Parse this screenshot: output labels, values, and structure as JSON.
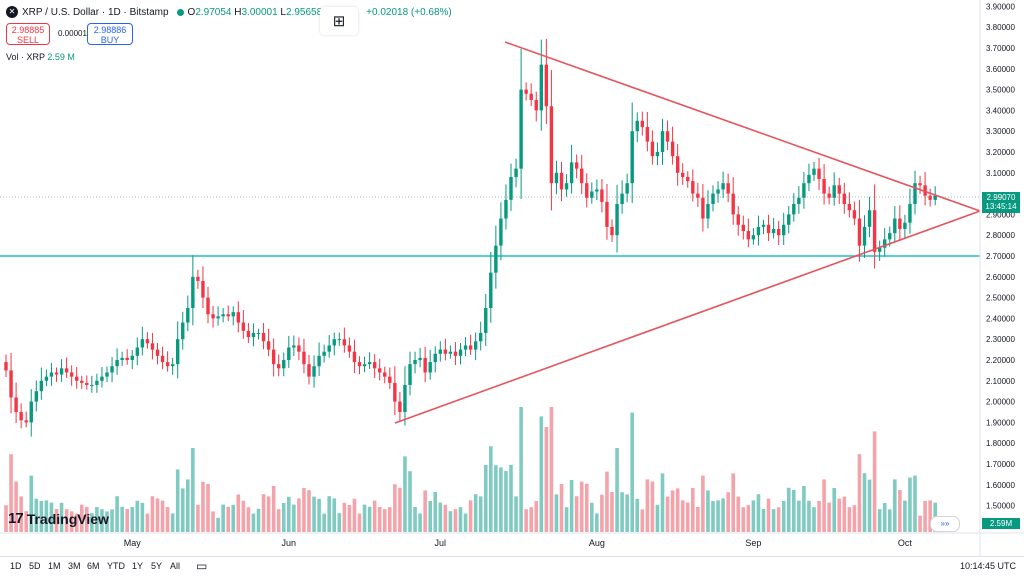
{
  "header": {
    "symbol": "XRP / U.S. Dollar · 1D · Bitstamp",
    "open_label": "O",
    "open": "2.97054",
    "high_label": "H",
    "high": "3.00001",
    "low_label": "L",
    "low": "2.95658",
    "change": "+0.02018 (+0.68%)"
  },
  "trade": {
    "sell_price": "2.98885",
    "sell_label": "SELL",
    "spread": "0.00001",
    "buy_price": "2.98886",
    "buy_label": "BUY"
  },
  "volume_label": {
    "name": "Vol · XRP",
    "value": "2.59 M"
  },
  "current_price": {
    "price": "2.99070",
    "countdown": "13:45:14"
  },
  "volume_tag": "2.59M",
  "logo_text": "TradingView",
  "timeframes": [
    "1D",
    "5D",
    "1M",
    "3M",
    "6M",
    "YTD",
    "1Y",
    "5Y",
    "All"
  ],
  "clock": "10:14:45 UTC",
  "colors": {
    "up": "#089981",
    "down": "#f23645",
    "up_volume": "#7fcbc1",
    "down_volume": "#f5a3aa",
    "trendline": "#e5545d",
    "support": "#1fc1c9"
  },
  "chart_data": {
    "type": "candlestick",
    "x_axis": {
      "labels": [
        "May",
        "Jun",
        "Jul",
        "Aug",
        "Sep",
        "Oct"
      ],
      "label_index": [
        25,
        56,
        86,
        117,
        148,
        178
      ]
    },
    "y_axis": {
      "ticks": [
        {
          "value": 3.9,
          "label": "3.90000"
        },
        {
          "value": 3.8,
          "label": "3.80000"
        },
        {
          "value": 3.7,
          "label": "3.70000"
        },
        {
          "value": 3.6,
          "label": "3.60000"
        },
        {
          "value": 3.5,
          "label": "3.50000"
        },
        {
          "value": 3.4,
          "label": "3.40000"
        },
        {
          "value": 3.3,
          "label": "3.30000"
        },
        {
          "value": 3.2,
          "label": "3.20000"
        },
        {
          "value": 3.1,
          "label": "3.10000"
        },
        {
          "value": 2.9,
          "label": "2.90000"
        },
        {
          "value": 2.8,
          "label": "2.80000"
        },
        {
          "value": 2.7,
          "label": "2.70000"
        },
        {
          "value": 2.6,
          "label": "2.60000"
        },
        {
          "value": 2.5,
          "label": "2.50000"
        },
        {
          "value": 2.4,
          "label": "2.40000"
        },
        {
          "value": 2.3,
          "label": "2.30000"
        },
        {
          "value": 2.2,
          "label": "2.20000"
        },
        {
          "value": 2.1,
          "label": "2.10000"
        },
        {
          "value": 2.0,
          "label": "2.00000"
        },
        {
          "value": 1.9,
          "label": "1.90000"
        },
        {
          "value": 1.8,
          "label": "1.80000"
        },
        {
          "value": 1.7,
          "label": "1.70000"
        },
        {
          "value": 1.6,
          "label": "1.60000"
        },
        {
          "value": 1.5,
          "label": "1.50000"
        }
      ]
    },
    "close": [
      2.15,
      2.02,
      1.95,
      1.91,
      1.9,
      2.0,
      2.05,
      2.1,
      2.12,
      2.14,
      2.13,
      2.16,
      2.14,
      2.12,
      2.1,
      2.09,
      2.08,
      2.08,
      2.1,
      2.12,
      2.14,
      2.17,
      2.2,
      2.21,
      2.2,
      2.22,
      2.26,
      2.3,
      2.28,
      2.25,
      2.22,
      2.19,
      2.17,
      2.18,
      2.3,
      2.38,
      2.45,
      2.6,
      2.58,
      2.5,
      2.42,
      2.4,
      2.41,
      2.42,
      2.41,
      2.43,
      2.38,
      2.34,
      2.31,
      2.33,
      2.33,
      2.29,
      2.25,
      2.18,
      2.16,
      2.2,
      2.26,
      2.27,
      2.24,
      2.18,
      2.12,
      2.17,
      2.22,
      2.24,
      2.27,
      2.3,
      2.3,
      2.27,
      2.24,
      2.19,
      2.17,
      2.18,
      2.19,
      2.16,
      2.14,
      2.12,
      2.09,
      2.0,
      1.95,
      2.08,
      2.18,
      2.2,
      2.21,
      2.14,
      2.19,
      2.23,
      2.25,
      2.23,
      2.24,
      2.22,
      2.25,
      2.27,
      2.25,
      2.29,
      2.33,
      2.45,
      2.62,
      2.75,
      2.88,
      2.97,
      3.08,
      3.12,
      3.5,
      3.48,
      3.45,
      3.4,
      3.62,
      3.42,
      3.05,
      3.1,
      3.02,
      3.05,
      3.15,
      3.12,
      3.05,
      2.98,
      3.01,
      3.02,
      2.96,
      2.84,
      2.8,
      2.95,
      3.0,
      3.05,
      3.3,
      3.35,
      3.32,
      3.25,
      3.18,
      3.2,
      3.3,
      3.25,
      3.18,
      3.1,
      3.08,
      3.06,
      3.0,
      2.98,
      2.88,
      2.95,
      3.0,
      3.02,
      3.05,
      3.0,
      2.9,
      2.85,
      2.82,
      2.78,
      2.8,
      2.84,
      2.85,
      2.81,
      2.83,
      2.8,
      2.85,
      2.9,
      2.95,
      2.98,
      3.05,
      3.09,
      3.12,
      3.07,
      3.0,
      2.98,
      3.04,
      3.0,
      2.95,
      2.92,
      2.88,
      2.75,
      2.84,
      2.92,
      2.72,
      2.74,
      2.78,
      2.81,
      2.88,
      2.83,
      2.86,
      2.95,
      3.05,
      3.04,
      2.99,
      2.97,
      2.99
    ]
  }
}
